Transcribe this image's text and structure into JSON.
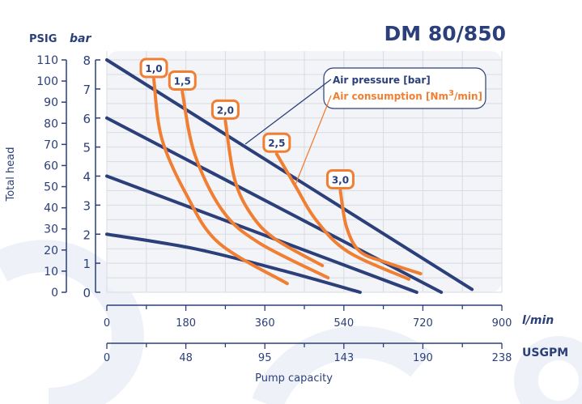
{
  "chart_data": {
    "type": "line",
    "title": "DM 80/850",
    "ylabel": "Total head",
    "xlabel": "Pump capacity",
    "y_units_left": "PSIG",
    "y_units_right": "bar",
    "x_units_primary": "l/min",
    "x_units_secondary": "USGPM",
    "xlim": [
      0,
      900
    ],
    "ylim_bar": [
      0,
      8
    ],
    "ylim_psig": [
      0,
      110
    ],
    "x_ticks": [
      "0",
      "180",
      "360",
      "540",
      "720",
      "900"
    ],
    "x2_ticks": [
      "0",
      "48",
      "95",
      "143",
      "190",
      "238"
    ],
    "y_ticks_bar": [
      "0",
      "1",
      "2",
      "3",
      "4",
      "5",
      "6",
      "7",
      "8"
    ],
    "y_ticks_psig": [
      "0",
      "10",
      "20",
      "30",
      "40",
      "50",
      "60",
      "70",
      "80",
      "90",
      "100",
      "110"
    ],
    "grid": true,
    "legend": {
      "position": "top-right",
      "air_pressure": "Air pressure [bar]",
      "air_consumption_prefix": "Air consumption [Nm",
      "air_consumption_sup": "3",
      "air_consumption_suffix": "/min]"
    },
    "colors": {
      "air_pressure": "#2b3f7a",
      "air_consumption": "#f07f33",
      "grid": "#d8dbe3"
    },
    "air_pressure_series": [
      {
        "points": [
          [
            0,
            8
          ],
          [
            832,
            0.1
          ]
        ]
      },
      {
        "points": [
          [
            0,
            6
          ],
          [
            762,
            0
          ]
        ]
      },
      {
        "points": [
          [
            0,
            4
          ],
          [
            706,
            0
          ]
        ]
      },
      {
        "points": [
          [
            0,
            2
          ],
          [
            200,
            1.5
          ],
          [
            400,
            0.75
          ],
          [
            577,
            0
          ]
        ]
      }
    ],
    "air_consumption_series": [
      {
        "name": "1,0",
        "points": [
          [
            107,
            7.33
          ],
          [
            125,
            5.3
          ],
          [
            181,
            3.37
          ],
          [
            255,
            1.7
          ],
          [
            411,
            0.3
          ]
        ]
      },
      {
        "name": "1,5",
        "points": [
          [
            172,
            6.9
          ],
          [
            200,
            4.76
          ],
          [
            264,
            2.8
          ],
          [
            347,
            1.7
          ],
          [
            504,
            0.5
          ]
        ]
      },
      {
        "name": "2,0",
        "points": [
          [
            270,
            5.9
          ],
          [
            291,
            3.9
          ],
          [
            328,
            2.7
          ],
          [
            383,
            1.84
          ],
          [
            491,
            0.92
          ]
        ]
      },
      {
        "name": "2,5",
        "points": [
          [
            387,
            4.76
          ],
          [
            430,
            3.65
          ],
          [
            476,
            2.5
          ],
          [
            549,
            1.4
          ],
          [
            688,
            0.45
          ]
        ]
      },
      {
        "name": "3,0",
        "points": [
          [
            532,
            3.5
          ],
          [
            546,
            2.25
          ],
          [
            577,
            1.4
          ],
          [
            642,
            1.0
          ],
          [
            715,
            0.64
          ]
        ]
      }
    ]
  }
}
